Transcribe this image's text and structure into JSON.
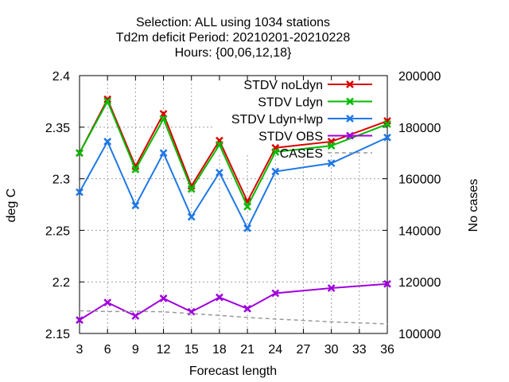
{
  "chart_data": {
    "type": "line",
    "title": [
      "Selection: ALL using  1034 stations",
      "Td2m deficit   Period: 20210201-20210228",
      "Hours: {00,06,12,18}"
    ],
    "xlabel": "Forecast length",
    "ylabel": "deg C",
    "y2label": "No cases",
    "x_ticks": [
      3,
      6,
      9,
      12,
      15,
      18,
      21,
      24,
      27,
      30,
      33,
      36
    ],
    "y_ticks": [
      "2.15",
      "2.2",
      "2.25",
      "2.3",
      "2.35",
      "2.4"
    ],
    "y2_ticks": [
      "100000",
      "120000",
      "140000",
      "160000",
      "180000",
      "200000"
    ],
    "xlim": [
      3,
      36
    ],
    "ylim": [
      2.15,
      2.4
    ],
    "y2lim": [
      100000,
      200000
    ],
    "grid": true,
    "legend_position": "top-right",
    "series": [
      {
        "name": "STDV noLdyn",
        "color": "#dd0000",
        "marker": "x",
        "axis": "left",
        "x": [
          3,
          6,
          9,
          12,
          15,
          18,
          21,
          24,
          30,
          36
        ],
        "values": [
          2.325,
          2.377,
          2.312,
          2.363,
          2.293,
          2.337,
          2.278,
          2.33,
          2.336,
          2.356
        ]
      },
      {
        "name": "STDV Ldyn",
        "color": "#00bb00",
        "marker": "x",
        "axis": "left",
        "x": [
          3,
          6,
          9,
          12,
          15,
          18,
          21,
          24,
          30,
          36
        ],
        "values": [
          2.325,
          2.375,
          2.309,
          2.358,
          2.29,
          2.333,
          2.273,
          2.326,
          2.332,
          2.353
        ]
      },
      {
        "name": "STDV Ldyn+lwp",
        "color": "#1e78e6",
        "marker": "x",
        "axis": "left",
        "x": [
          3,
          6,
          9,
          12,
          15,
          18,
          21,
          24,
          30,
          36
        ],
        "values": [
          2.287,
          2.336,
          2.274,
          2.325,
          2.263,
          2.306,
          2.252,
          2.307,
          2.315,
          2.34
        ]
      },
      {
        "name": "STDV OBS",
        "color": "#a000dd",
        "marker": "x",
        "axis": "left",
        "x": [
          3,
          6,
          9,
          12,
          15,
          18,
          21,
          24,
          30,
          36
        ],
        "values": [
          2.163,
          2.18,
          2.167,
          2.184,
          2.171,
          2.185,
          2.174,
          2.189,
          2.194,
          2.198
        ]
      },
      {
        "name": "CASES",
        "color": "#999999",
        "marker": "none",
        "dashed": true,
        "axis": "right",
        "x": [
          3,
          6,
          9,
          12,
          15,
          18,
          21,
          24,
          30,
          36
        ],
        "values": [
          108800,
          108500,
          108600,
          108400,
          107700,
          107000,
          106200,
          105600,
          104500,
          103700
        ]
      }
    ]
  }
}
